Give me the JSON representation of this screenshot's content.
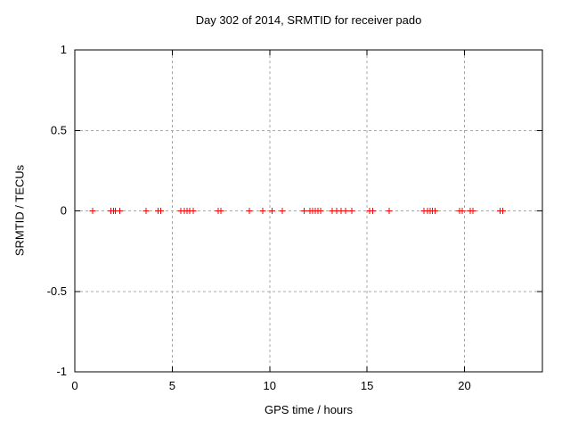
{
  "chart_data": {
    "type": "scatter",
    "title": "Day 302 of 2014, SRMTID for receiver pado",
    "xlabel": "GPS time / hours",
    "ylabel": "SRMTID / TECUs",
    "xlim": [
      0,
      24
    ],
    "ylim": [
      -1,
      1
    ],
    "xticks": [
      {
        "v": 0,
        "label": "0"
      },
      {
        "v": 5,
        "label": "5"
      },
      {
        "v": 10,
        "label": "10"
      },
      {
        "v": 15,
        "label": "15"
      },
      {
        "v": 20,
        "label": "20"
      }
    ],
    "yticks": [
      {
        "v": -1,
        "label": "-1"
      },
      {
        "v": -0.5,
        "label": "-0.5"
      },
      {
        "v": 0,
        "label": "0"
      },
      {
        "v": 0.5,
        "label": "0.5"
      },
      {
        "v": 1,
        "label": "1"
      }
    ],
    "grid": true,
    "legend": "none",
    "marker": {
      "shape": "plus",
      "size": 7
    },
    "series": [
      {
        "name": "SRMTID",
        "x": [
          0.91,
          1.84,
          1.98,
          2.09,
          2.3,
          3.66,
          4.27,
          4.42,
          5.45,
          5.62,
          5.76,
          5.9,
          6.08,
          7.36,
          7.5,
          8.96,
          9.65,
          10.13,
          10.64,
          11.78,
          12.07,
          12.21,
          12.34,
          12.48,
          12.62,
          13.22,
          13.43,
          13.67,
          13.9,
          14.22,
          15.13,
          15.28,
          16.13,
          17.92,
          18.1,
          18.24,
          18.35,
          18.5,
          19.75,
          19.88,
          20.3,
          20.44,
          21.82,
          21.97
        ],
        "y": [
          0,
          0,
          0,
          0,
          0,
          0,
          0,
          0,
          0,
          0,
          0,
          0,
          0,
          0,
          0,
          0,
          0,
          0,
          0,
          0,
          0,
          0,
          0,
          0,
          0,
          0,
          0,
          0,
          0,
          0,
          0,
          0,
          0,
          0,
          0,
          0,
          0,
          0,
          0,
          0,
          0,
          0,
          0,
          0
        ]
      }
    ]
  },
  "colors": {
    "background": "#ffffff",
    "border": "#000000",
    "grid": "#a8a8a8",
    "marker": "#ff0000",
    "text": "#000000"
  }
}
